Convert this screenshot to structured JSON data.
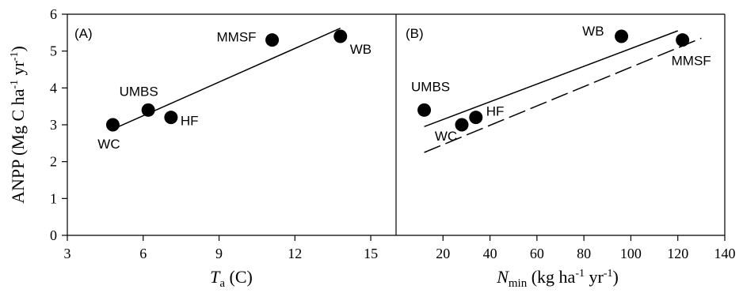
{
  "chart_data": [
    {
      "type": "scatter",
      "panel_label": "(A)",
      "xlabel_main": "T",
      "xlabel_sub": "a",
      "xlabel_rest": " (C)",
      "ylabel_prefix": "ANPP (Mg C ha",
      "ylabel_sup1": "-1",
      "ylabel_mid": " yr",
      "ylabel_sup2": "-1",
      "ylabel_suffix": ")",
      "xlim": [
        3,
        16
      ],
      "ylim": [
        0,
        6
      ],
      "xticks": [
        "3",
        "6",
        "9",
        "12",
        "15"
      ],
      "yticks": [
        "0",
        "1",
        "2",
        "3",
        "4",
        "5",
        "6"
      ],
      "points": [
        {
          "label": "WC",
          "x": 4.8,
          "y": 3.0
        },
        {
          "label": "UMBS",
          "x": 6.2,
          "y": 3.4
        },
        {
          "label": "HF",
          "x": 7.1,
          "y": 3.2
        },
        {
          "label": "MMSF",
          "x": 11.1,
          "y": 5.3
        },
        {
          "label": "WB",
          "x": 13.8,
          "y": 5.4
        }
      ],
      "fit_lines": [
        {
          "style": "solid",
          "x": [
            4.8,
            13.8
          ],
          "y": [
            2.88,
            5.62
          ]
        }
      ]
    },
    {
      "type": "scatter",
      "panel_label": "(B)",
      "xlabel_main": "N",
      "xlabel_sub": "min",
      "xlabel_rest": " (kg ha",
      "xlabel_sup1": "-1",
      "xlabel_mid": " yr",
      "xlabel_sup2": "-1",
      "xlabel_suffix": ")",
      "xlim": [
        0,
        140
      ],
      "ylim": [
        0,
        6
      ],
      "xticks": [
        "20",
        "40",
        "60",
        "80",
        "100",
        "120",
        "140"
      ],
      "points": [
        {
          "label": "UMBS",
          "x": 12,
          "y": 3.4
        },
        {
          "label": "WC",
          "x": 28,
          "y": 3.0
        },
        {
          "label": "HF",
          "x": 34,
          "y": 3.2
        },
        {
          "label": "WB",
          "x": 96,
          "y": 5.4
        },
        {
          "label": "MMSF",
          "x": 122,
          "y": 5.3
        }
      ],
      "fit_lines": [
        {
          "style": "solid",
          "x": [
            12,
            120
          ],
          "y": [
            2.95,
            5.55
          ]
        },
        {
          "style": "dashed",
          "x": [
            12,
            130
          ],
          "y": [
            2.25,
            5.35
          ]
        }
      ]
    }
  ]
}
